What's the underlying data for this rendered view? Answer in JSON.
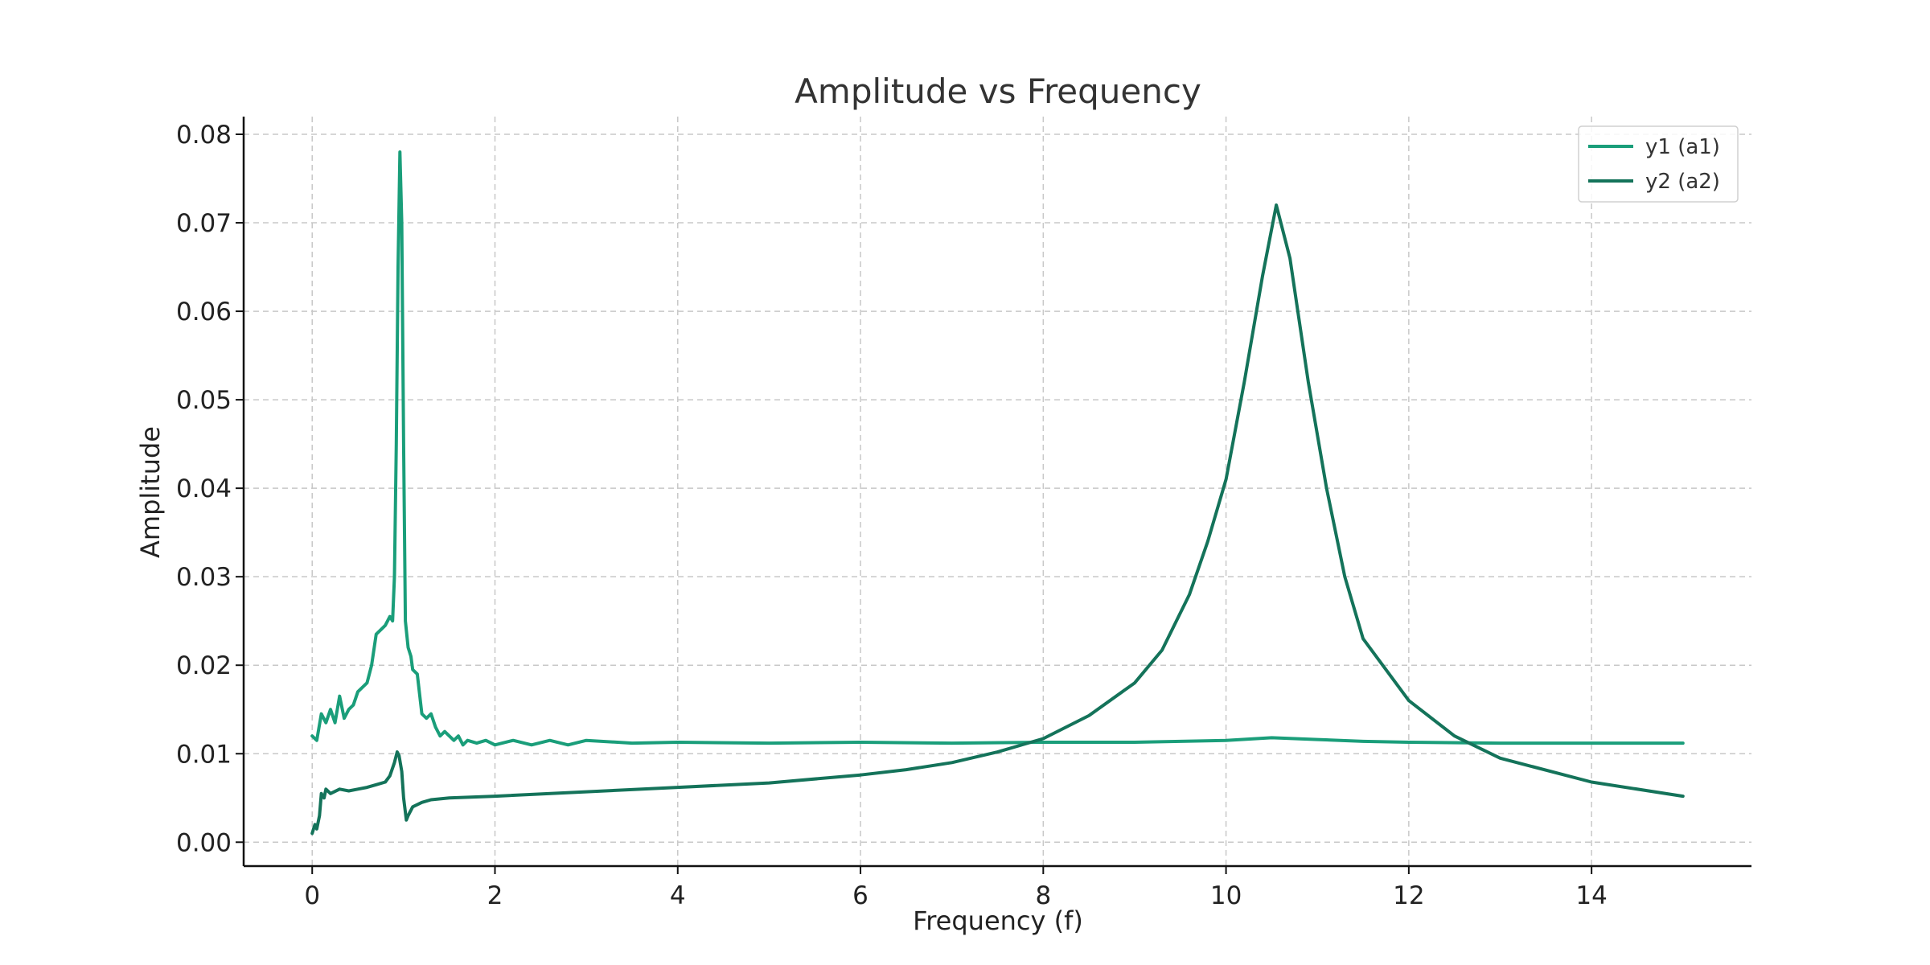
{
  "chart_data": {
    "type": "line",
    "title": "Amplitude vs Frequency",
    "xlabel": "Frequency (f)",
    "ylabel": "Amplitude",
    "xlim": [
      -0.75,
      15.75
    ],
    "ylim": [
      -0.0027,
      0.082
    ],
    "xticks": [
      0,
      2,
      4,
      6,
      8,
      10,
      12,
      14
    ],
    "yticks": [
      0.0,
      0.01,
      0.02,
      0.03,
      0.04,
      0.05,
      0.06,
      0.07,
      0.08
    ],
    "ytick_labels": [
      "0.00",
      "0.01",
      "0.02",
      "0.03",
      "0.04",
      "0.05",
      "0.06",
      "0.07",
      "0.08"
    ],
    "grid": true,
    "legend": "top-right",
    "series": [
      {
        "name": "y1 (a1)",
        "color": "#1a9e7a",
        "x": [
          0,
          0.05,
          0.1,
          0.15,
          0.2,
          0.25,
          0.3,
          0.35,
          0.4,
          0.45,
          0.5,
          0.55,
          0.6,
          0.65,
          0.7,
          0.75,
          0.8,
          0.85,
          0.88,
          0.9,
          0.92,
          0.94,
          0.96,
          0.98,
          1.0,
          1.02,
          1.05,
          1.08,
          1.1,
          1.15,
          1.2,
          1.25,
          1.3,
          1.35,
          1.4,
          1.45,
          1.5,
          1.55,
          1.6,
          1.65,
          1.7,
          1.8,
          1.9,
          2.0,
          2.2,
          2.4,
          2.6,
          2.8,
          3.0,
          3.5,
          4.0,
          5.0,
          6.0,
          7.0,
          8.0,
          9.0,
          9.5,
          10.0,
          10.5,
          11.0,
          11.5,
          12.0,
          13.0,
          14.0,
          15.0
        ],
        "y": [
          0.012,
          0.0115,
          0.0145,
          0.0135,
          0.015,
          0.0135,
          0.0165,
          0.014,
          0.015,
          0.0155,
          0.017,
          0.0175,
          0.018,
          0.02,
          0.0235,
          0.024,
          0.0245,
          0.0255,
          0.025,
          0.03,
          0.045,
          0.065,
          0.078,
          0.07,
          0.045,
          0.025,
          0.022,
          0.021,
          0.0195,
          0.019,
          0.0145,
          0.014,
          0.0145,
          0.013,
          0.012,
          0.0125,
          0.012,
          0.0115,
          0.012,
          0.011,
          0.0115,
          0.0112,
          0.0115,
          0.011,
          0.0115,
          0.011,
          0.0115,
          0.011,
          0.0115,
          0.0112,
          0.0113,
          0.0112,
          0.0113,
          0.0112,
          0.0113,
          0.0113,
          0.0114,
          0.0115,
          0.0118,
          0.0116,
          0.0114,
          0.0113,
          0.0112,
          0.0112,
          0.0112
        ]
      },
      {
        "name": "y2 (a2)",
        "color": "#14735a",
        "x": [
          0,
          0.03,
          0.05,
          0.08,
          0.1,
          0.13,
          0.15,
          0.2,
          0.3,
          0.4,
          0.5,
          0.6,
          0.7,
          0.8,
          0.85,
          0.9,
          0.93,
          0.95,
          0.98,
          1.0,
          1.03,
          1.05,
          1.1,
          1.2,
          1.3,
          1.5,
          2.0,
          3.0,
          4.0,
          5.0,
          6.0,
          6.5,
          7.0,
          7.5,
          8.0,
          8.5,
          9.0,
          9.3,
          9.6,
          9.8,
          10.0,
          10.2,
          10.4,
          10.55,
          10.7,
          10.9,
          11.1,
          11.3,
          11.5,
          12.0,
          12.5,
          13.0,
          14.0,
          15.0
        ],
        "y": [
          0.001,
          0.002,
          0.0015,
          0.003,
          0.0055,
          0.005,
          0.006,
          0.0055,
          0.006,
          0.0058,
          0.006,
          0.0062,
          0.0065,
          0.0068,
          0.0075,
          0.009,
          0.0102,
          0.0098,
          0.008,
          0.005,
          0.0025,
          0.003,
          0.004,
          0.0045,
          0.0048,
          0.005,
          0.0052,
          0.0057,
          0.0062,
          0.0067,
          0.0076,
          0.0082,
          0.009,
          0.0102,
          0.0117,
          0.0143,
          0.018,
          0.0217,
          0.028,
          0.034,
          0.041,
          0.052,
          0.064,
          0.072,
          0.066,
          0.052,
          0.04,
          0.03,
          0.023,
          0.016,
          0.012,
          0.0095,
          0.0068,
          0.0052
        ]
      }
    ]
  }
}
